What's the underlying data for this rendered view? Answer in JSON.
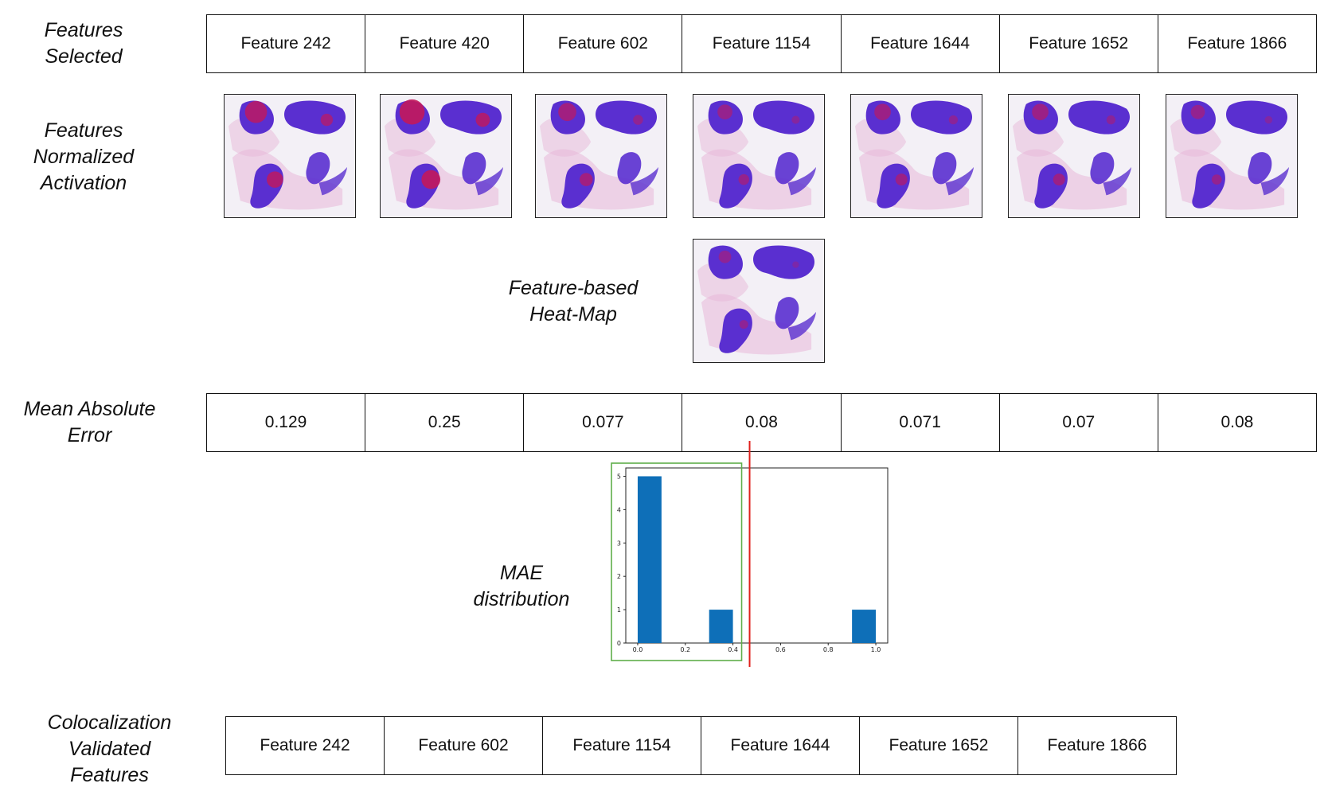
{
  "labels": {
    "features_selected": [
      "Features",
      "Selected"
    ],
    "features_normalized_activation": [
      "Features",
      "Normalized",
      "Activation"
    ],
    "heatmap": [
      "Feature-based",
      "Heat-Map"
    ],
    "mean_absolute_error": [
      "Mean Absolute",
      "Error"
    ],
    "mae_distribution": [
      "MAE",
      "distribution"
    ],
    "colocalization": [
      "Colocalization",
      "Validated",
      "Features"
    ]
  },
  "features_selected": [
    "Feature 242",
    "Feature 420",
    "Feature 602",
    "Feature 1154",
    "Feature 1644",
    "Feature 1652",
    "Feature 1866"
  ],
  "mae_values": [
    "0.129",
    "0.25",
    "0.077",
    "0.08",
    "0.071",
    "0.07",
    "0.08"
  ],
  "validated_features": [
    "Feature 242",
    "Feature 602",
    "Feature 1154",
    "Feature 1644",
    "Feature 1652",
    "Feature 1866"
  ],
  "thumbnails": [
    {
      "feature": "Feature 242",
      "hot": 0.8
    },
    {
      "feature": "Feature 420",
      "hot": 1.0
    },
    {
      "feature": "Feature 602",
      "hot": 0.55
    },
    {
      "feature": "Feature 1154",
      "hot": 0.35
    },
    {
      "feature": "Feature 1644",
      "hot": 0.45
    },
    {
      "feature": "Feature 1652",
      "hot": 0.45
    },
    {
      "feature": "Feature 1866",
      "hot": 0.3
    }
  ],
  "heatmap_thumbnail": {
    "hot": 0.2
  },
  "colors": {
    "bar": "#0e6fb8",
    "threshold_line": "#e0201c",
    "selection_box": "#5fae4a",
    "tissue_blue": "#5a2fd0",
    "tissue_red": "#c2185b",
    "tissue_pink": "#e8b8d8"
  },
  "chart_data": {
    "type": "bar",
    "title": "",
    "xlabel": "",
    "ylabel": "",
    "bins": [
      {
        "x_start": 0.0,
        "x_end": 0.1,
        "count": 5
      },
      {
        "x_start": 0.3,
        "x_end": 0.4,
        "count": 1
      },
      {
        "x_start": 0.9,
        "x_end": 1.0,
        "count": 1
      }
    ],
    "xlim": [
      -0.05,
      1.05
    ],
    "ylim": [
      0,
      5.25
    ],
    "xticks": [
      "0.0",
      "0.2",
      "0.4",
      "0.6",
      "0.8",
      "1.0"
    ],
    "yticks": [
      "0",
      "1",
      "2",
      "3",
      "4",
      "5"
    ],
    "threshold_x": 0.47,
    "selection_range": [
      -0.05,
      0.47
    ]
  }
}
